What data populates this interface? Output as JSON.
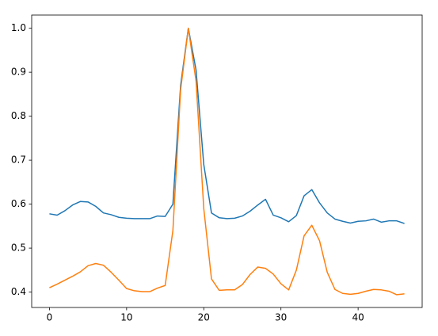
{
  "chart_data": {
    "type": "line",
    "x": [
      0,
      1,
      2,
      3,
      4,
      5,
      6,
      7,
      8,
      9,
      10,
      11,
      12,
      13,
      14,
      15,
      16,
      17,
      18,
      19,
      20,
      21,
      22,
      23,
      24,
      25,
      26,
      27,
      28,
      29,
      30,
      31,
      32,
      33,
      34,
      35,
      36,
      37,
      38,
      39,
      40,
      41,
      42,
      43,
      44,
      45,
      46
    ],
    "series": [
      {
        "color": "#1f77b4",
        "values": [
          0.578,
          0.575,
          0.585,
          0.598,
          0.606,
          0.605,
          0.595,
          0.58,
          0.576,
          0.57,
          0.568,
          0.567,
          0.567,
          0.567,
          0.573,
          0.572,
          0.6,
          0.87,
          1.0,
          0.905,
          0.69,
          0.58,
          0.569,
          0.567,
          0.568,
          0.573,
          0.584,
          0.598,
          0.611,
          0.575,
          0.569,
          0.56,
          0.574,
          0.619,
          0.633,
          0.603,
          0.58,
          0.566,
          0.561,
          0.557,
          0.561,
          0.562,
          0.566,
          0.559,
          0.562,
          0.562,
          0.556
        ]
      },
      {
        "color": "#ff7f0e",
        "values": [
          0.41,
          0.418,
          0.427,
          0.436,
          0.446,
          0.46,
          0.465,
          0.461,
          0.445,
          0.427,
          0.408,
          0.403,
          0.401,
          0.401,
          0.409,
          0.415,
          0.54,
          0.86,
          1.0,
          0.88,
          0.59,
          0.43,
          0.404,
          0.405,
          0.405,
          0.417,
          0.44,
          0.457,
          0.454,
          0.441,
          0.419,
          0.405,
          0.45,
          0.528,
          0.552,
          0.517,
          0.445,
          0.406,
          0.397,
          0.395,
          0.397,
          0.402,
          0.406,
          0.405,
          0.402,
          0.394,
          0.396
        ]
      }
    ],
    "xlim": [
      -2.3,
      48.3
    ],
    "xticks": [
      0,
      10,
      20,
      30,
      40
    ],
    "ylim": [
      0.365,
      1.03
    ],
    "yticks": [
      0.4,
      0.5,
      0.6,
      0.7,
      0.8,
      0.9,
      {
        "value": 1.0,
        "label": "1.0"
      }
    ]
  }
}
